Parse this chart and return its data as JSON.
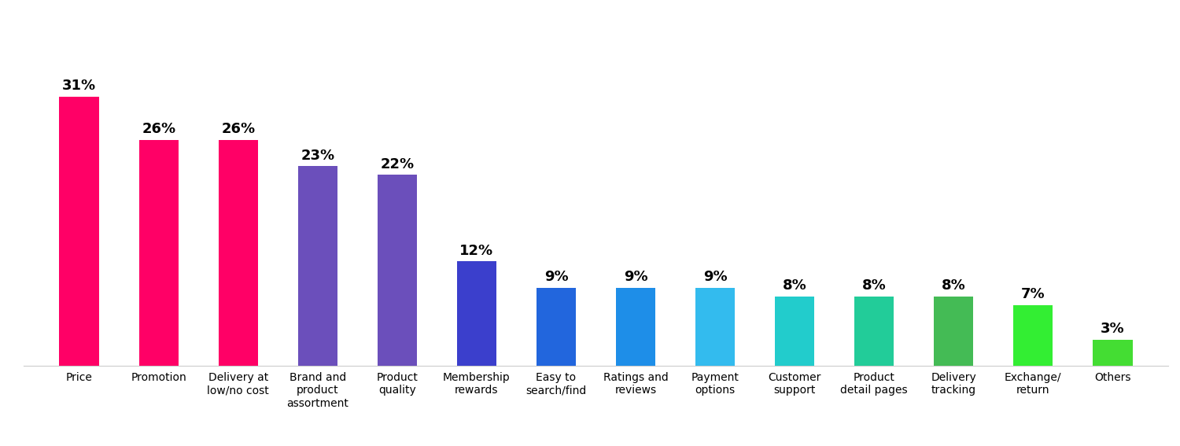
{
  "categories": [
    "Price",
    "Promotion",
    "Delivery at\nlow/no cost",
    "Brand and\nproduct\nassortment",
    "Product\nquality",
    "Membership\nrewards",
    "Easy to\nsearch/find",
    "Ratings and\nreviews",
    "Payment\noptions",
    "Customer\nsupport",
    "Product\ndetail pages",
    "Delivery\ntracking",
    "Exchange/\nreturn",
    "Others"
  ],
  "values": [
    31,
    26,
    26,
    23,
    22,
    12,
    9,
    9,
    9,
    8,
    8,
    8,
    7,
    3
  ],
  "bar_colors": [
    "#FF0066",
    "#FF0066",
    "#FF0066",
    "#6B4FBB",
    "#6B4FBB",
    "#3B3FCC",
    "#2266DD",
    "#1E8EE8",
    "#33BBEE",
    "#22CCCC",
    "#22CC99",
    "#44BB55",
    "#33EE33",
    "#44DD33"
  ],
  "label_fontsize": 13,
  "tick_fontsize": 10,
  "background_color": "#ffffff",
  "ylim": [
    0,
    38
  ],
  "bar_width": 0.5
}
